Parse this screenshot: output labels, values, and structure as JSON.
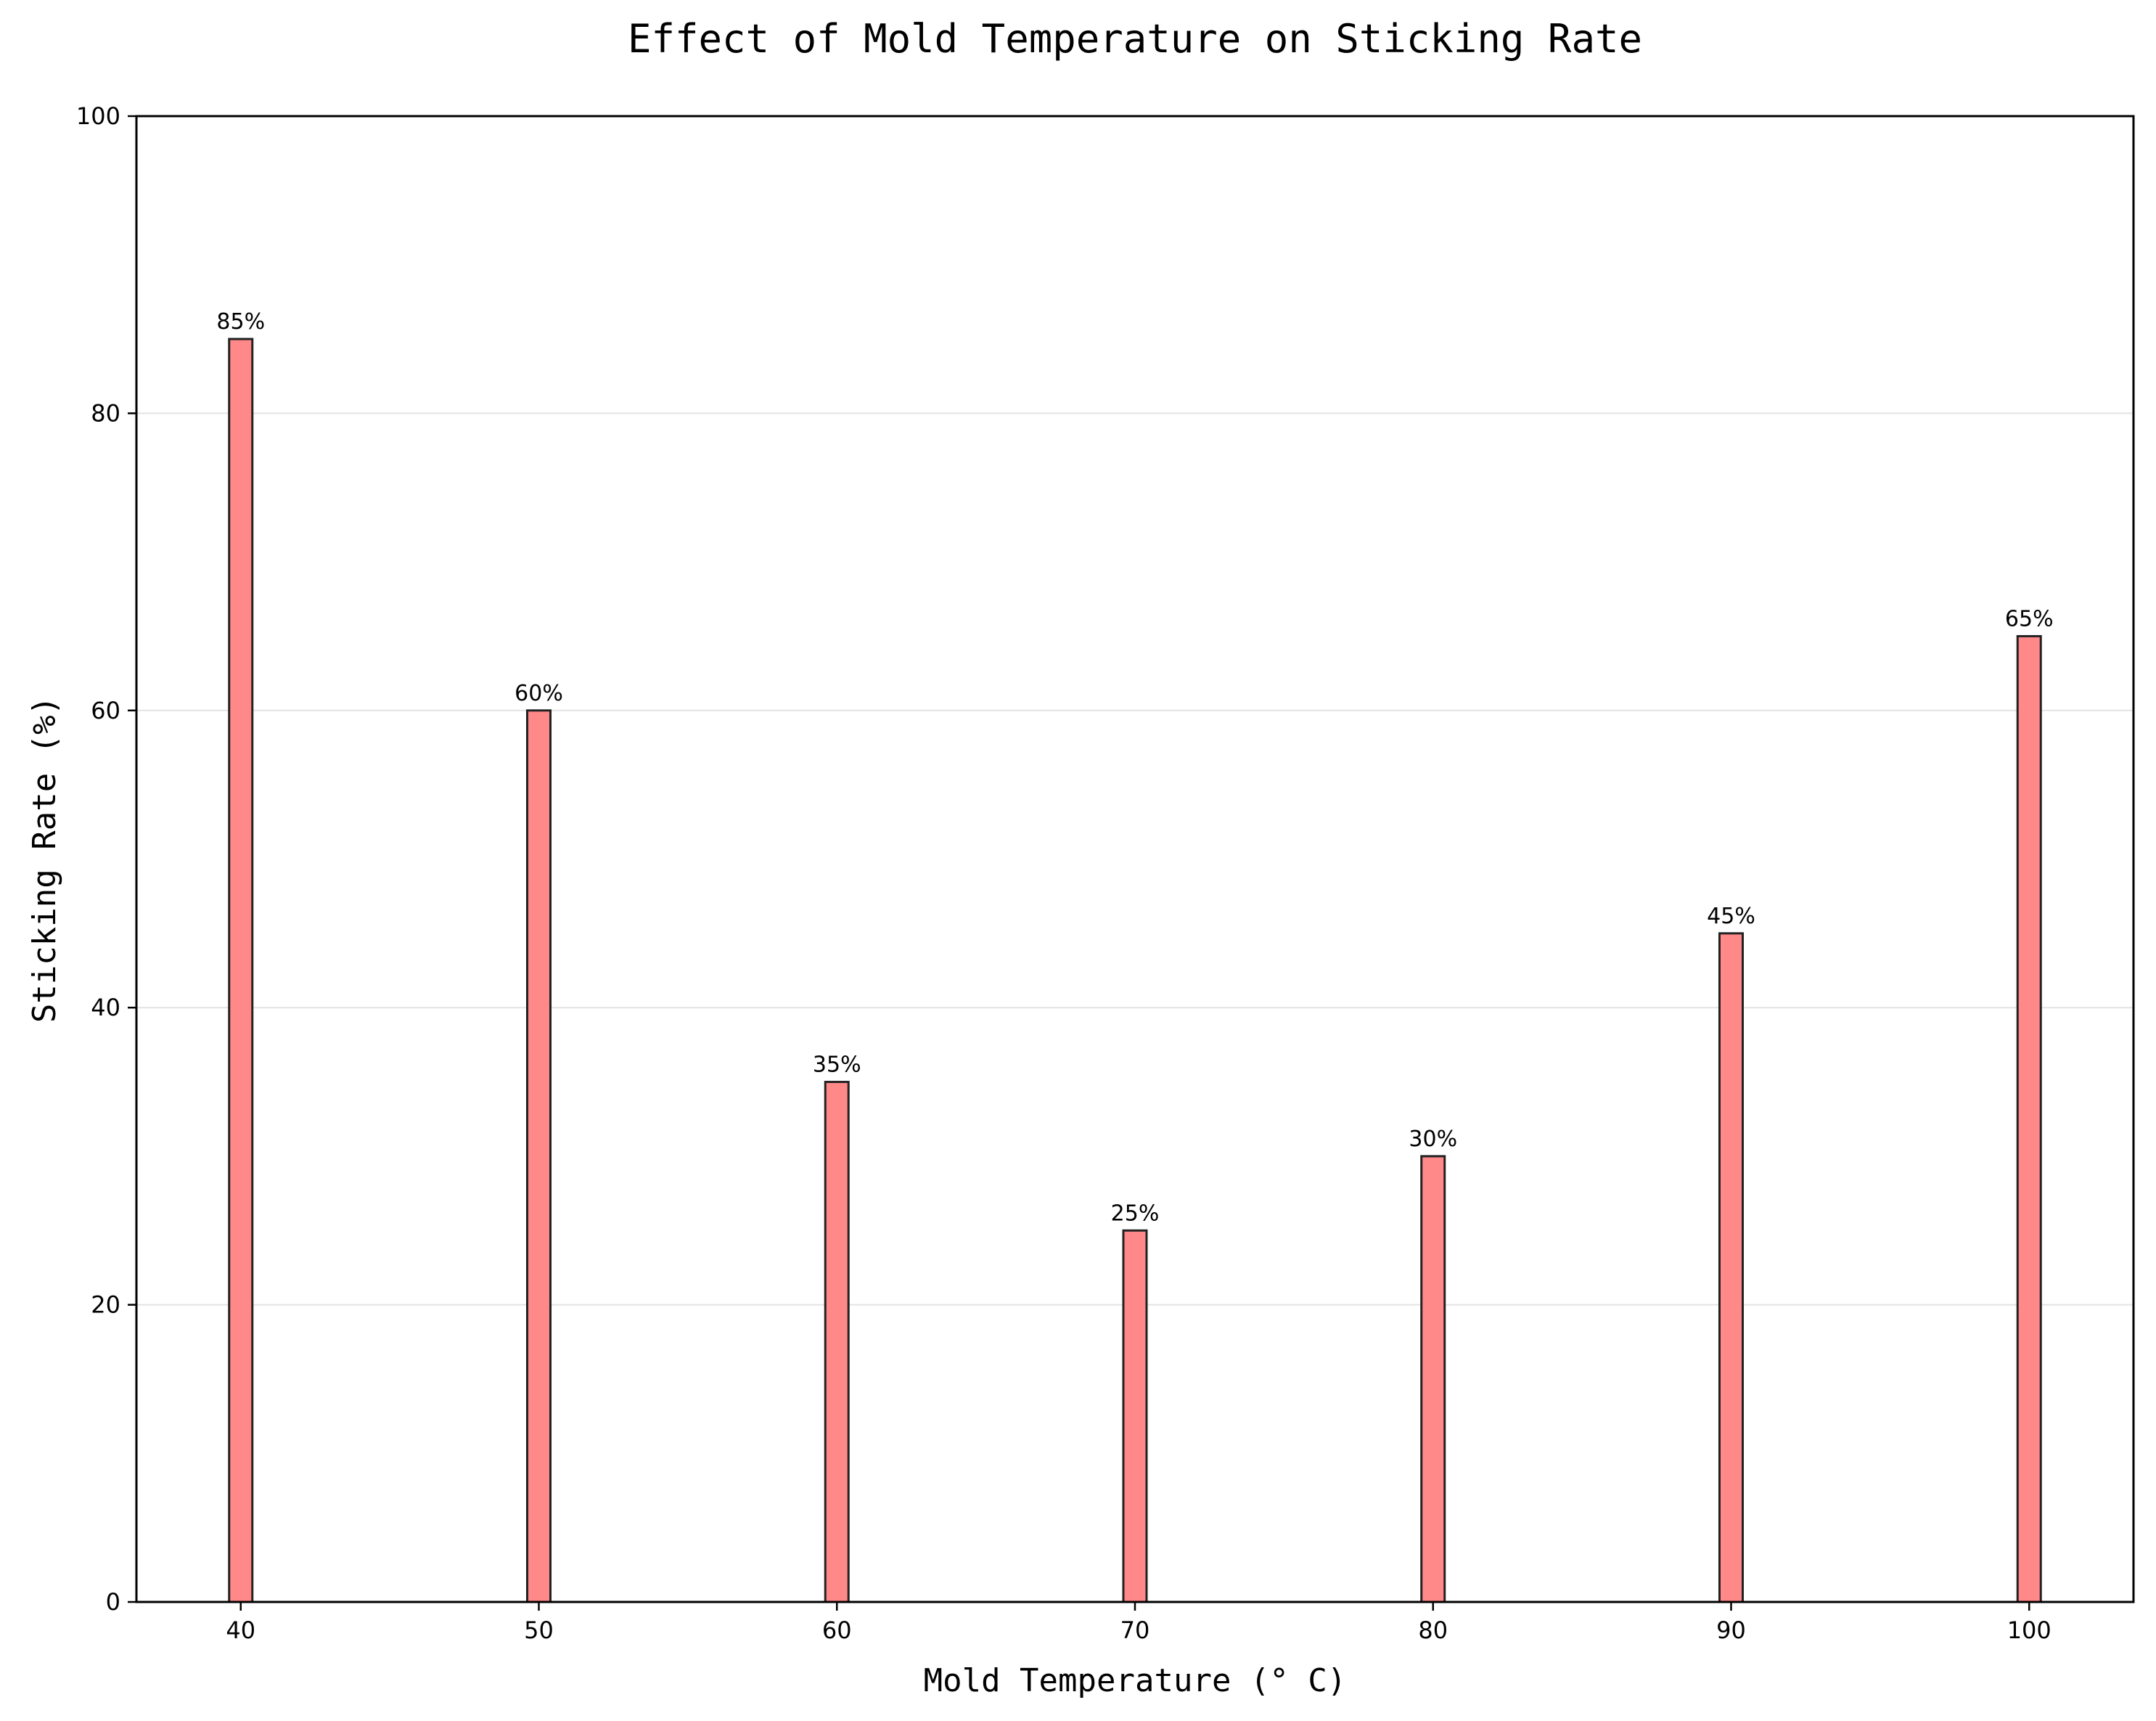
{
  "chart_data": {
    "type": "bar",
    "title": "Effect of Mold Temperature on Sticking Rate",
    "xlabel": "Mold Temperature (° C)",
    "ylabel": "Sticking Rate (%)",
    "x": [
      40,
      50,
      60,
      70,
      80,
      90,
      100
    ],
    "values": [
      85,
      60,
      35,
      25,
      30,
      45,
      65
    ],
    "data_labels": [
      "85%",
      "60%",
      "35%",
      "25%",
      "30%",
      "45%",
      "65%"
    ],
    "xlim": [
      36.5,
      103.5
    ],
    "ylim": [
      0,
      100
    ],
    "xticks": [
      40,
      50,
      60,
      70,
      80,
      90,
      100
    ],
    "yticks": [
      0,
      20,
      40,
      60,
      80,
      100
    ],
    "grid": "horizontal",
    "bar_color": "#ff8888",
    "bar_edge_color": "#222222",
    "grid_color": "#e3e3e3"
  }
}
